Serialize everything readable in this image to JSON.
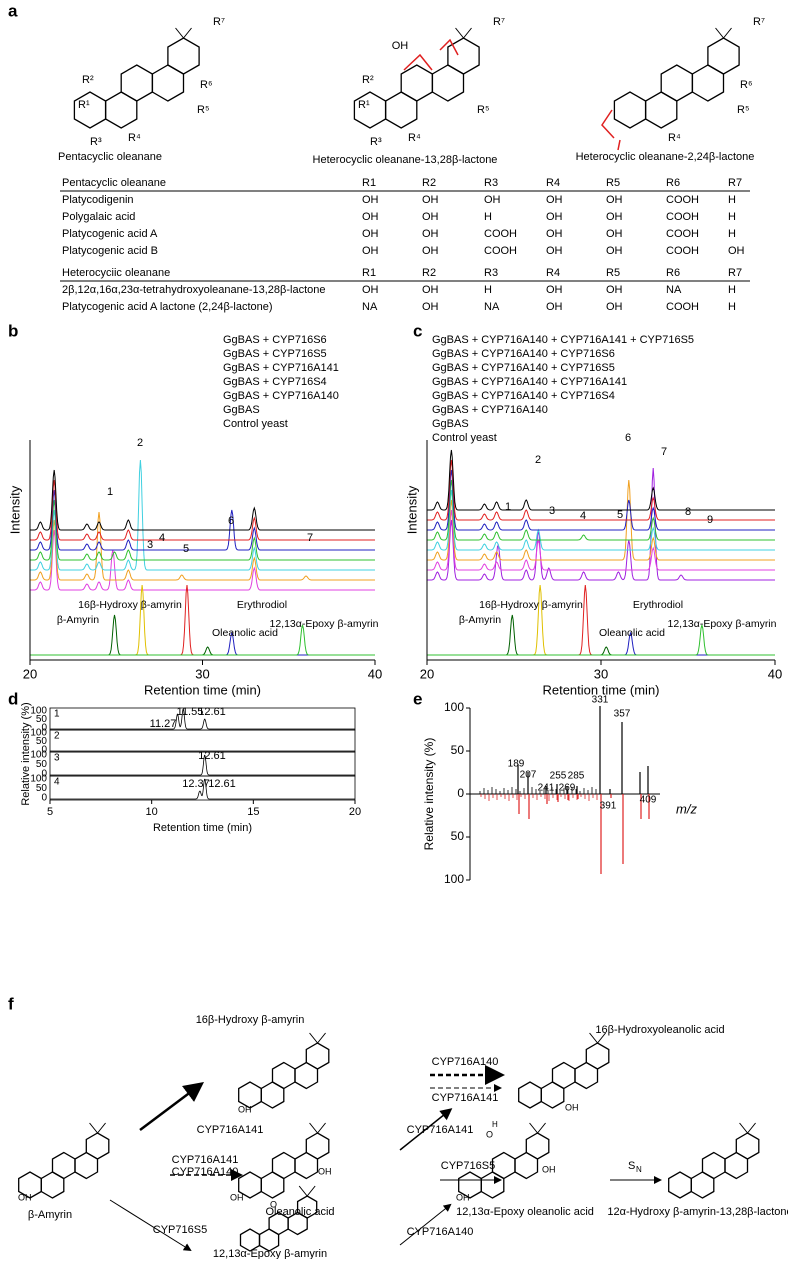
{
  "panel_labels": [
    "a",
    "b",
    "c",
    "d",
    "e",
    "f"
  ],
  "structures": {
    "names": [
      "Pentacyclic oleanane",
      "Heterocyclic oleanane-13,28β-lactone",
      "Heterocyclic oleanane-2,24β-lactone"
    ],
    "r_labels": [
      "R¹",
      "R²",
      "R³",
      "R⁴",
      "R⁵",
      "R⁶",
      "R⁷"
    ],
    "oh": "OH"
  },
  "table": {
    "sections": [
      {
        "header": [
          "Pentacyclic oleanane",
          "R1",
          "R2",
          "R3",
          "R4",
          "R5",
          "R6",
          "R7"
        ],
        "rows": [
          [
            "Platycodigenin",
            "OH",
            "OH",
            "OH",
            "OH",
            "OH",
            "COOH",
            "H"
          ],
          [
            "Polygalaic acid",
            "OH",
            "OH",
            "H",
            "OH",
            "OH",
            "COOH",
            "H"
          ],
          [
            "Platycogenic acid A",
            "OH",
            "OH",
            "COOH",
            "OH",
            "OH",
            "COOH",
            "H"
          ],
          [
            "Platycogenic acid B",
            "OH",
            "OH",
            "COOH",
            "OH",
            "OH",
            "COOH",
            "OH"
          ]
        ]
      },
      {
        "header": [
          "Heterocyciic oleanane",
          "R1",
          "R2",
          "R3",
          "R4",
          "R5",
          "R6",
          "R7"
        ],
        "rows": [
          [
            "2β,12α,16α,23α-tetrahydroxyoleanane-13,28β-lactone",
            "OH",
            "OH",
            "H",
            "OH",
            "OH",
            "NA",
            "H"
          ],
          [
            "Platycogenic acid A lactone (2,24β-lactone)",
            "NA",
            "OH",
            "NA",
            "OH",
            "OH",
            "COOH",
            "H"
          ]
        ]
      }
    ]
  },
  "panel_b": {
    "legend": [
      {
        "text": "GgBAS + CYP716S6",
        "color": "#e040e0"
      },
      {
        "text": "GgBAS + CYP716S5",
        "color": "#f0a020"
      },
      {
        "text": "GgBAS + CYP716A141",
        "color": "#40d0e0"
      },
      {
        "text": "GgBAS + CYP716S4",
        "color": "#30c030"
      },
      {
        "text": "GgBAS + CYP716A140",
        "color": "#2020c0"
      },
      {
        "text": "GgBAS",
        "color": "#e02020"
      },
      {
        "text": "Control yeast",
        "color": "#000000"
      }
    ],
    "peaks": [
      "1",
      "2",
      "3",
      "4",
      "5",
      "6",
      "7"
    ],
    "standards": [
      "16β-Hydroxy β-amyrin",
      "Erythrodiol",
      "β-Amyrin",
      "Oleanolic acid",
      "12,13α-Epoxy β-amyrin"
    ],
    "x_ticks": [
      "20",
      "30",
      "40"
    ],
    "x_label": "Retention time (min)",
    "y_label": "Intensity"
  },
  "panel_c": {
    "legend": [
      {
        "text": "GgBAS + CYP716A140 + CYP716A141 + CYP716S5",
        "color": "#a020e0"
      },
      {
        "text": "GgBAS + CYP716A140 + CYP716S6",
        "color": "#e040e0"
      },
      {
        "text": "GgBAS + CYP716A140 + CYP716S5",
        "color": "#f0a020"
      },
      {
        "text": "GgBAS + CYP716A140 + CYP716A141",
        "color": "#40d0e0"
      },
      {
        "text": "GgBAS + CYP716A140 + CYP716S4",
        "color": "#30c030"
      },
      {
        "text": "GgBAS + CYP716A140",
        "color": "#2020c0"
      },
      {
        "text": "GgBAS",
        "color": "#e02020"
      },
      {
        "text": "Control yeast",
        "color": "#000000"
      }
    ],
    "peaks": [
      "1",
      "2",
      "3",
      "4",
      "5",
      "6",
      "7",
      "8",
      "9"
    ],
    "standards": [
      "16β-Hydroxy β-amyrin",
      "Erythrodiol",
      "β-Amyrin",
      "Oleanolic acid",
      "12,13α-Epoxy β-amyrin"
    ],
    "x_ticks": [
      "20",
      "30",
      "40"
    ],
    "x_label": "Retention time (min)",
    "y_label": "Intensity"
  },
  "panel_d": {
    "traces": [
      "1",
      "2",
      "3",
      "4"
    ],
    "y_ticks": [
      "100",
      "50",
      "0"
    ],
    "peak_labels": {
      "1": [
        "11.27",
        "11.55",
        "12.61"
      ],
      "3": [
        "12.61"
      ],
      "4": [
        "12.37",
        "12.61"
      ]
    },
    "x_ticks": [
      "5",
      "10",
      "15",
      "20"
    ],
    "x_label": "Retention time (min)",
    "y_label": "Relative intensity (%)"
  },
  "panel_e": {
    "y_ticks": [
      "100",
      "50",
      "0",
      "50",
      "100"
    ],
    "mz_labels": [
      "331",
      "357",
      "189",
      "207",
      "255",
      "285",
      "241",
      "269",
      "391",
      "409"
    ],
    "x_label": "m/z",
    "y_label": "Relative intensity (%)"
  },
  "panel_f": {
    "compounds": [
      "16β-Hydroxy β-amyrin",
      "16β-Hydroxyoleanolic acid",
      "β-Amyrin",
      "Oleanolic acid",
      "12,13α-Epoxy oleanolic acid",
      "12α-Hydroxy β-amyrin-13,28β-lactone",
      "12,13α-Epoxy β-amyrin"
    ],
    "enzymes": [
      "CYP716A140",
      "CYP716A141",
      "CYP716A141",
      "CYP716A141",
      "CYP716A141",
      "CYP716A140",
      "CYP716S5",
      "CYP716S5",
      "CYP716A140"
    ],
    "sn": "S",
    "sn_sub": "N",
    "oh": "OH",
    "o": "O",
    "h": "H"
  }
}
